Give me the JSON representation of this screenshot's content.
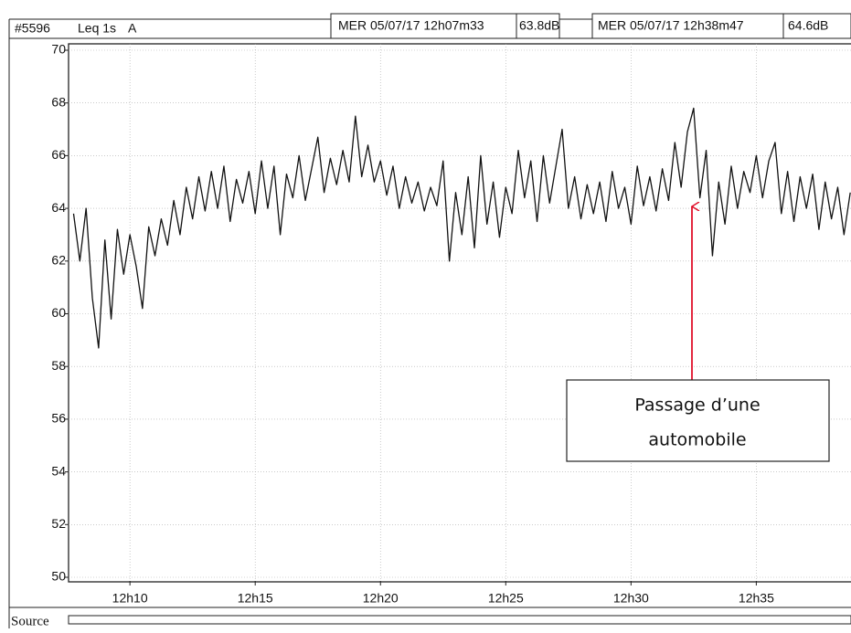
{
  "header": {
    "id": "#5596",
    "channel": "Leq 1s",
    "weighting": "A",
    "start": "MER 05/07/17 12h07m33",
    "start_level": "63.8dB",
    "end": "MER 05/07/17 12h38m47",
    "end_level": "64.6dB"
  },
  "chart_data": {
    "type": "line",
    "color": "#111111",
    "grid": true,
    "x": [
      7.75,
      8,
      8.25,
      8.5,
      8.75,
      9,
      9.25,
      9.5,
      9.75,
      10,
      10.25,
      10.5,
      10.75,
      11,
      11.25,
      11.5,
      11.75,
      12,
      12.25,
      12.5,
      12.75,
      13,
      13.25,
      13.5,
      13.75,
      14,
      14.25,
      14.5,
      14.75,
      15,
      15.25,
      15.5,
      15.75,
      16,
      16.25,
      16.5,
      16.75,
      17,
      17.25,
      17.5,
      17.75,
      18,
      18.25,
      18.5,
      18.75,
      19,
      19.25,
      19.5,
      19.75,
      20,
      20.25,
      20.5,
      20.75,
      21,
      21.25,
      21.5,
      21.75,
      22,
      22.25,
      22.5,
      22.75,
      23,
      23.25,
      23.5,
      23.75,
      24,
      24.25,
      24.5,
      24.75,
      25,
      25.25,
      25.5,
      25.75,
      26,
      26.25,
      26.5,
      26.75,
      27,
      27.25,
      27.5,
      27.75,
      28,
      28.25,
      28.5,
      28.75,
      29,
      29.25,
      29.5,
      29.75,
      30,
      30.25,
      30.5,
      30.75,
      31,
      31.25,
      31.5,
      31.75,
      32,
      32.25,
      32.5,
      32.75,
      33,
      33.25,
      33.5,
      33.75,
      34,
      34.25,
      34.5,
      34.75,
      35,
      35.25,
      35.5,
      35.75,
      36,
      36.25,
      36.5,
      36.75,
      37,
      37.25,
      37.5,
      37.75,
      38,
      38.25,
      38.5,
      38.75
    ],
    "values": [
      63.8,
      62.0,
      64.0,
      60.6,
      58.7,
      62.8,
      59.8,
      63.2,
      61.5,
      63.0,
      61.8,
      60.2,
      63.3,
      62.2,
      63.6,
      62.6,
      64.3,
      63.0,
      64.8,
      63.6,
      65.2,
      63.9,
      65.4,
      64.0,
      65.6,
      63.5,
      65.1,
      64.2,
      65.4,
      63.8,
      65.8,
      64.0,
      65.6,
      63.0,
      65.3,
      64.4,
      66.0,
      64.3,
      65.5,
      66.7,
      64.6,
      65.9,
      64.9,
      66.2,
      65.0,
      67.5,
      65.2,
      66.4,
      65.0,
      65.8,
      64.5,
      65.6,
      64.0,
      65.2,
      64.2,
      65.0,
      63.9,
      64.8,
      64.1,
      65.8,
      62.0,
      64.6,
      63.0,
      65.2,
      62.5,
      66.0,
      63.4,
      65.0,
      62.9,
      64.8,
      63.8,
      66.2,
      64.4,
      65.8,
      63.5,
      66.0,
      64.2,
      65.6,
      67.0,
      64.0,
      65.2,
      63.6,
      64.9,
      63.8,
      65.0,
      63.5,
      65.4,
      64.0,
      64.8,
      63.4,
      65.6,
      64.1,
      65.2,
      63.9,
      65.5,
      64.3,
      66.5,
      64.8,
      66.9,
      67.8,
      64.4,
      66.2,
      62.2,
      65.0,
      63.4,
      65.6,
      64.0,
      65.4,
      64.6,
      66.0,
      64.4,
      65.8,
      66.5,
      63.8,
      65.4,
      63.5,
      65.2,
      64.0,
      65.3,
      63.2,
      65.0,
      63.6,
      64.8,
      63.0,
      64.6
    ],
    "xlim": [
      7.55,
      38.78
    ],
    "xticks": [
      {
        "value": 10,
        "label": "12h10"
      },
      {
        "value": 15,
        "label": "12h15"
      },
      {
        "value": 20,
        "label": "12h20"
      },
      {
        "value": 25,
        "label": "12h25"
      },
      {
        "value": 30,
        "label": "12h30"
      },
      {
        "value": 35,
        "label": "12h35"
      }
    ],
    "ylim": [
      50,
      70
    ],
    "yticks": [
      50,
      52,
      54,
      56,
      58,
      60,
      62,
      64,
      66,
      68,
      70
    ],
    "annotation": {
      "lines": [
        "Passage d’une",
        "automobile"
      ]
    }
  },
  "footer": {
    "source_label": "Source"
  }
}
